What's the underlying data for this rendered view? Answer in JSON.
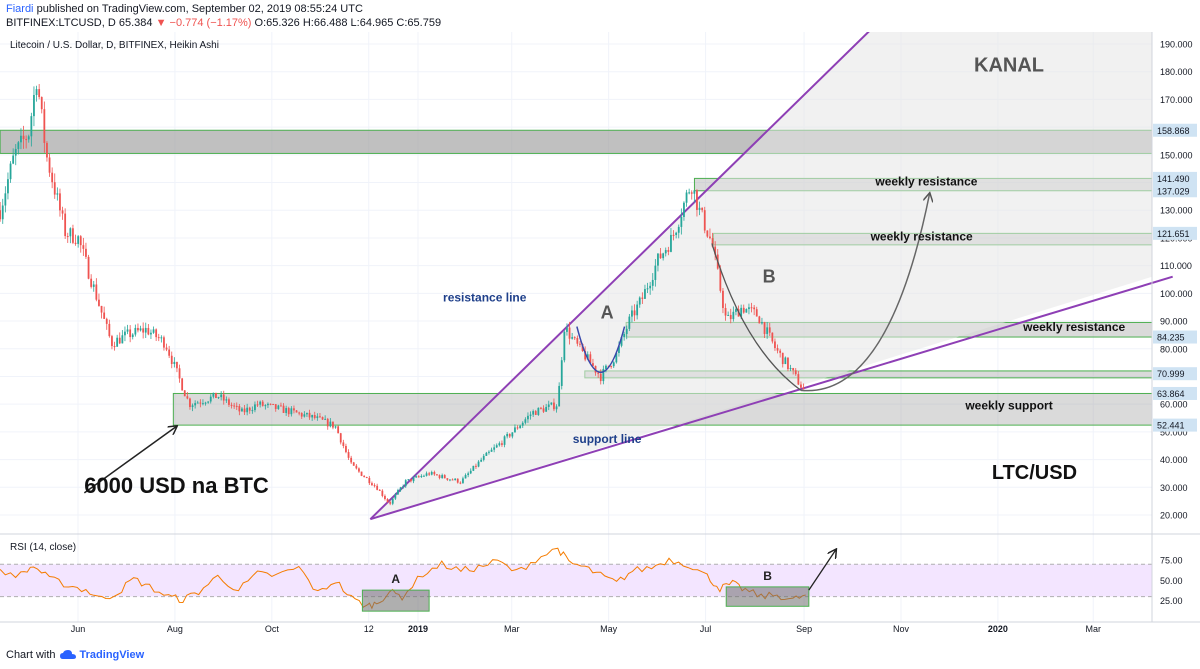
{
  "header": {
    "author": "Fiardi",
    "published": "published on TradingView.com, September 02, 2019 08:55:24 UTC",
    "symbol_line_prefix": "BITFINEX:LTCUSD, D  65.384",
    "change": "▼ −0.774 (−1.17%)",
    "ohlc": "O:65.326 H:66.488 L:64.965 C:65.759"
  },
  "footer": {
    "prefix": "Chart with",
    "brand": "TradingView"
  },
  "colors": {
    "up": "#26a69a",
    "down": "#ef5350",
    "trend": "#8e3fb5",
    "zone": "#9e9e9e",
    "zone_border": "#4caf50",
    "rsi": "#f57c00",
    "rsi_band": "#f3e5ff",
    "badge": "#cfe3f3"
  },
  "chart_data": [
    {
      "type": "candlestick",
      "title": "Litecoin / U.S. Dollar, D, BITFINEX, Heikin Ashi",
      "x_tick_labels": [
        "Jun",
        "Aug",
        "Oct",
        "12",
        "2019",
        "Mar",
        "May",
        "Jul",
        "Sep",
        "Nov",
        "2020",
        "Mar"
      ],
      "y_tick_labels": [
        "190.000",
        "180.000",
        "170.000",
        "160.000",
        "150.000",
        "140.000",
        "130.000",
        "120.000",
        "110.000",
        "100.000",
        "90.000",
        "80.000",
        "70.000",
        "60.000",
        "50.000",
        "40.000",
        "30.000",
        "20.000"
      ],
      "ylim": [
        15,
        195
      ],
      "grid": true,
      "price_badges": [
        "158.868",
        "141.490",
        "137.029",
        "121.651",
        "84.235",
        "70.999",
        "63.864",
        "52.441"
      ],
      "price_path": [
        {
          "date": "2018-04-13",
          "close": 130
        },
        {
          "date": "2018-04-22",
          "close": 150
        },
        {
          "date": "2018-05-01",
          "close": 158
        },
        {
          "date": "2018-05-06",
          "close": 178
        },
        {
          "date": "2018-05-12",
          "close": 150
        },
        {
          "date": "2018-05-24",
          "close": 122
        },
        {
          "date": "2018-06-01",
          "close": 120
        },
        {
          "date": "2018-06-12",
          "close": 100
        },
        {
          "date": "2018-06-22",
          "close": 82
        },
        {
          "date": "2018-07-02",
          "close": 85
        },
        {
          "date": "2018-07-14",
          "close": 87
        },
        {
          "date": "2018-07-26",
          "close": 82
        },
        {
          "date": "2018-08-10",
          "close": 60
        },
        {
          "date": "2018-08-28",
          "close": 63
        },
        {
          "date": "2018-09-12",
          "close": 57
        },
        {
          "date": "2018-09-22",
          "close": 60
        },
        {
          "date": "2018-10-08",
          "close": 58
        },
        {
          "date": "2018-10-28",
          "close": 55
        },
        {
          "date": "2018-11-10",
          "close": 52
        },
        {
          "date": "2018-11-20",
          "close": 38
        },
        {
          "date": "2018-12-06",
          "close": 30
        },
        {
          "date": "2018-12-14",
          "close": 24
        },
        {
          "date": "2018-12-24",
          "close": 32
        },
        {
          "date": "2019-01-08",
          "close": 35
        },
        {
          "date": "2019-01-28",
          "close": 32
        },
        {
          "date": "2019-02-10",
          "close": 40
        },
        {
          "date": "2019-02-24",
          "close": 47
        },
        {
          "date": "2019-03-14",
          "close": 57
        },
        {
          "date": "2019-03-30",
          "close": 60
        },
        {
          "date": "2019-04-03",
          "close": 88
        },
        {
          "date": "2019-04-10",
          "close": 82
        },
        {
          "date": "2019-04-26",
          "close": 70
        },
        {
          "date": "2019-05-06",
          "close": 78
        },
        {
          "date": "2019-05-14",
          "close": 90
        },
        {
          "date": "2019-05-22",
          "close": 98
        },
        {
          "date": "2019-06-01",
          "close": 112
        },
        {
          "date": "2019-06-10",
          "close": 120
        },
        {
          "date": "2019-06-22",
          "close": 140
        },
        {
          "date": "2019-06-27",
          "close": 130
        },
        {
          "date": "2019-07-05",
          "close": 118
        },
        {
          "date": "2019-07-14",
          "close": 90
        },
        {
          "date": "2019-07-24",
          "close": 95
        },
        {
          "date": "2019-08-03",
          "close": 92
        },
        {
          "date": "2019-08-14",
          "close": 80
        },
        {
          "date": "2019-08-24",
          "close": 72
        },
        {
          "date": "2019-09-02",
          "close": 64
        }
      ],
      "zones": [
        {
          "name": "top",
          "from": "2018-04-13",
          "to": "2020-04-20",
          "low": 150.5,
          "high": 158.868
        },
        {
          "name": "weekly resistance 1",
          "from": "2019-06-24",
          "to": "2020-04-20",
          "low": 137.029,
          "high": 141.49
        },
        {
          "name": "weekly resistance 2",
          "from": "2019-07-06",
          "to": "2020-04-20",
          "low": 117.5,
          "high": 121.651
        },
        {
          "name": "weekly resistance 3",
          "from": "2019-05-12",
          "to": "2020-04-20",
          "low": 84.235,
          "high": 89.5
        },
        {
          "name": "mid band",
          "from": "2019-04-16",
          "to": "2020-04-20",
          "low": 69.5,
          "high": 72.0
        },
        {
          "name": "weekly support",
          "from": "2018-07-31",
          "to": "2020-04-20",
          "low": 52.441,
          "high": 63.864
        }
      ],
      "trendlines": [
        {
          "name": "support line",
          "from": {
            "date": "2018-12-02",
            "price": 18.5
          },
          "to": {
            "date": "2020-04-20",
            "price": 106
          }
        },
        {
          "name": "resistance line",
          "from": {
            "date": "2018-12-02",
            "price": 18.5
          },
          "to": {
            "date": "2019-10-18",
            "price": 198
          }
        }
      ],
      "annotations": [
        {
          "text": "KANAL",
          "date": "2020-01-08",
          "price": 180
        },
        {
          "text": "weekly resistance",
          "date": "2019-11-17",
          "price": 139
        },
        {
          "text": "weekly resistance",
          "date": "2019-11-14",
          "price": 119
        },
        {
          "text": "weekly resistance",
          "date": "2020-02-18",
          "price": 86.5
        },
        {
          "text": "weekly support",
          "date": "2020-01-08",
          "price": 58
        },
        {
          "text": "resistance line",
          "date": "2019-02-12",
          "price": 97
        },
        {
          "text": "support line",
          "date": "2019-04-30",
          "price": 46
        },
        {
          "text": "A",
          "date": "2019-04-30",
          "price": 91
        },
        {
          "text": "B",
          "date": "2019-08-10",
          "price": 104
        },
        {
          "text": "6000 USD na BTC",
          "date": "2018-08-02",
          "price": 28
        },
        {
          "text": "LTC/USD",
          "date": "2020-01-24",
          "price": 33
        }
      ]
    },
    {
      "type": "line",
      "title": "RSI (14, close)",
      "y_tick_labels": [
        "75.00",
        "50.00",
        "25.00"
      ],
      "ylim": [
        0,
        100
      ],
      "band": [
        30,
        70
      ],
      "series": [
        {
          "x": [
            "2018-04-13",
            "2018-04-26",
            "2018-05-04",
            "2018-05-14",
            "2018-05-26",
            "2018-06-06",
            "2018-06-16",
            "2018-06-26",
            "2018-07-06",
            "2018-07-16",
            "2018-07-28",
            "2018-08-06",
            "2018-08-16",
            "2018-08-28",
            "2018-09-10",
            "2018-09-22",
            "2018-10-04",
            "2018-10-18",
            "2018-10-30",
            "2018-11-10",
            "2018-11-20",
            "2018-11-30",
            "2018-12-06",
            "2018-12-14",
            "2018-12-22",
            "2019-01-04",
            "2019-01-16",
            "2019-01-28",
            "2019-02-08",
            "2019-02-20",
            "2019-03-04",
            "2019-03-16",
            "2019-03-30",
            "2019-04-06",
            "2019-04-16",
            "2019-04-26",
            "2019-05-06",
            "2019-05-16",
            "2019-05-28",
            "2019-06-08",
            "2019-06-20",
            "2019-07-02",
            "2019-07-10",
            "2019-07-18",
            "2019-07-26",
            "2019-08-05",
            "2019-08-15",
            "2019-08-25",
            "2019-09-02"
          ],
          "values": [
            60,
            57,
            68,
            52,
            44,
            38,
            27,
            35,
            52,
            42,
            30,
            26,
            36,
            55,
            38,
            58,
            56,
            66,
            34,
            50,
            28,
            18,
            22,
            36,
            30,
            58,
            70,
            62,
            66,
            74,
            60,
            76,
            90,
            72,
            66,
            56,
            47,
            62,
            66,
            76,
            70,
            55,
            40,
            46,
            38,
            30,
            32,
            26,
            32
          ]
        }
      ],
      "boxes": [
        {
          "label": "A",
          "from": "2018-11-27",
          "to": "2019-01-08",
          "low": 12,
          "high": 38
        },
        {
          "label": "B",
          "from": "2019-07-14",
          "to": "2019-09-04",
          "low": 18,
          "high": 42
        }
      ]
    }
  ]
}
